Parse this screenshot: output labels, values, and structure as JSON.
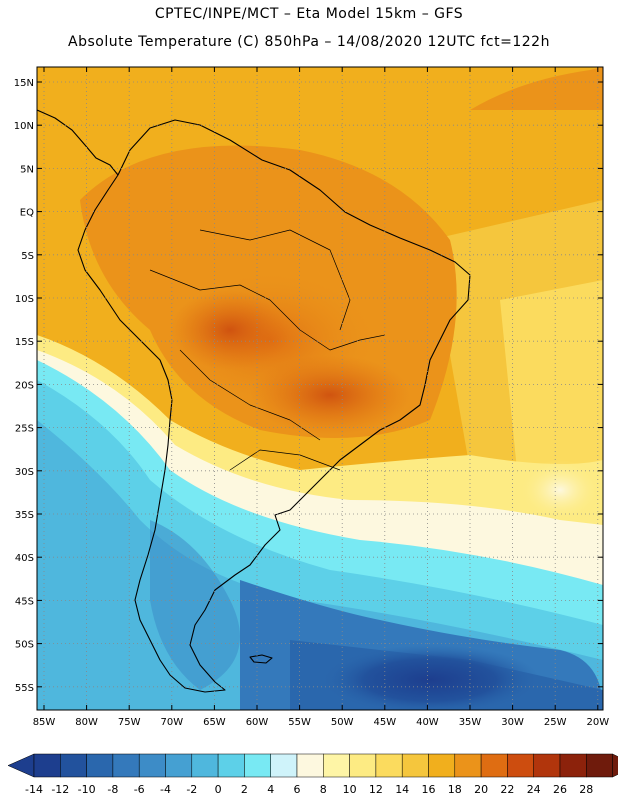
{
  "header": {
    "line1": "CPTEC/INPE/MCT –  Eta Model 15km – GFS",
    "line2": "Absolute Temperature (C) 850hPa – 14/08/2020 12UTC fct=122h"
  },
  "map": {
    "lat_labels": [
      "15N",
      "10N",
      "5N",
      "EQ",
      "5S",
      "10S",
      "15S",
      "20S",
      "25S",
      "30S",
      "35S",
      "40S",
      "45S",
      "50S",
      "55S"
    ],
    "lon_labels": [
      "85W",
      "80W",
      "75W",
      "70W",
      "65W",
      "60W",
      "55W",
      "50W",
      "45W",
      "40W",
      "35W",
      "30W",
      "25W",
      "20W"
    ]
  },
  "colorbar": {
    "ticks": [
      "-14",
      "-12",
      "-10",
      "-8",
      "-6",
      "-4",
      "-2",
      "0",
      "2",
      "4",
      "6",
      "8",
      "10",
      "12",
      "14",
      "16",
      "18",
      "20",
      "22",
      "24",
      "26",
      "28"
    ],
    "colors": [
      "#1d3e8e",
      "#22529d",
      "#2a67ad",
      "#3479bb",
      "#3d8cc7",
      "#45a0d2",
      "#4fb7dd",
      "#5dd0e8",
      "#78e9f3",
      "#cff3fa",
      "#fdf8df",
      "#fef5a6",
      "#fdeb83",
      "#fbdb5e",
      "#f5c63d",
      "#f1af1d",
      "#eb931a",
      "#df6d12",
      "#cd4d0f",
      "#b1350c",
      "#8c220b",
      "#6f1b0c"
    ]
  }
}
